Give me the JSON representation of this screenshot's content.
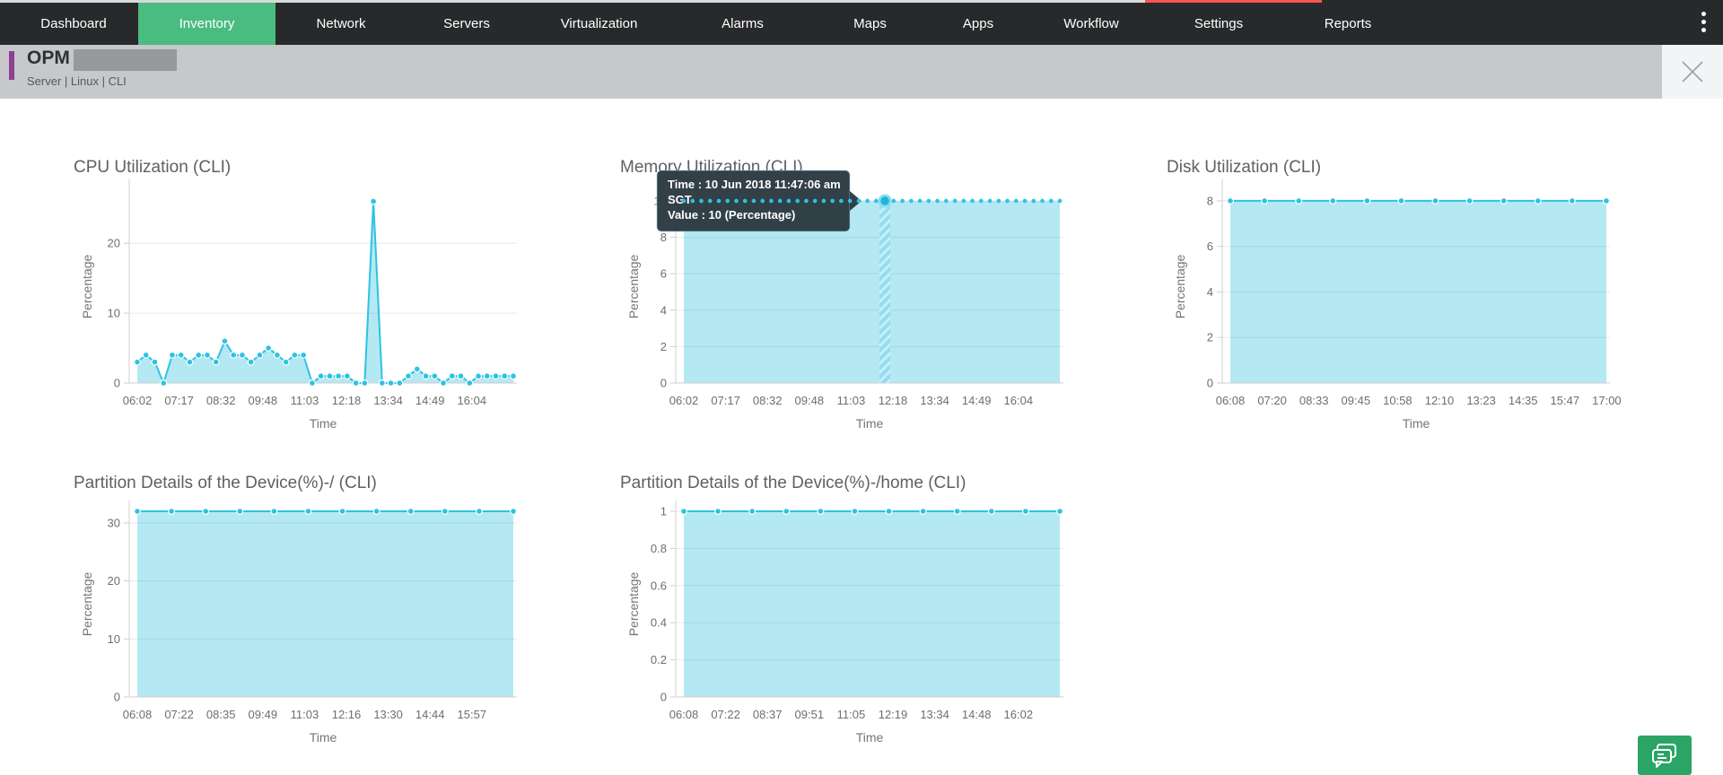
{
  "top_strip": {
    "gray": "#d8d9da",
    "red": "#f8564f",
    "dark": "#27292b"
  },
  "nav": {
    "items": [
      {
        "label": "Dashboard",
        "active": false
      },
      {
        "label": "Inventory",
        "active": true
      },
      {
        "label": "Network",
        "active": false
      },
      {
        "label": "Servers",
        "active": false
      },
      {
        "label": "Virtualization",
        "active": false
      },
      {
        "label": "Alarms",
        "active": false
      },
      {
        "label": "Maps",
        "active": false
      },
      {
        "label": "Apps",
        "active": false
      },
      {
        "label": "Workflow",
        "active": false
      },
      {
        "label": "Settings",
        "active": false
      },
      {
        "label": "Reports",
        "active": false
      }
    ],
    "active_color": "#4bbc80",
    "overflow_menu_icon": "kebab-menu-icon"
  },
  "header": {
    "title": "OPM",
    "title_redacted_suffix": true,
    "subtitle": "Server | Linux  | CLI",
    "accent_color": "#8e4192",
    "close_icon": "close-icon"
  },
  "tooltip": {
    "lines": [
      "Time : 10 Jun 2018 11:47:06 am",
      "SGT",
      "Value : 10 (Percentage)"
    ]
  },
  "colors": {
    "series_line": "#2dc3e2",
    "series_fill": "#b4e8f3",
    "hover_band": "#8edcf0",
    "tooltip_bg": "#2c3a41",
    "chat_green": "#2aa565"
  },
  "chart_data": [
    {
      "id": "cpu",
      "type": "area",
      "title": "CPU Utilization (CLI)",
      "xlabel": "Time",
      "ylabel": "Percentage",
      "x_tick_labels": [
        "06:02",
        "07:17",
        "08:32",
        "09:48",
        "11:03",
        "12:18",
        "13:34",
        "14:49",
        "16:04"
      ],
      "yticks": [
        0,
        10,
        20
      ],
      "ylim": [
        0,
        27.6
      ],
      "style": "line-dots",
      "values": [
        3,
        4,
        3,
        0,
        4,
        4,
        3,
        4,
        4,
        3,
        6,
        4,
        4,
        3,
        4,
        5,
        4,
        3,
        4,
        4,
        0,
        1,
        1,
        1,
        1,
        0,
        0,
        26,
        0,
        0,
        0,
        1,
        2,
        1,
        1,
        0,
        1,
        1,
        0,
        1,
        1,
        1,
        1,
        1
      ]
    },
    {
      "id": "memory",
      "type": "area",
      "title": "Memory Utilization (CLI)",
      "xlabel": "Time",
      "ylabel": "Percentage",
      "x_tick_labels": [
        "06:02",
        "07:17",
        "08:32",
        "09:48",
        "11:03",
        "12:18",
        "13:34",
        "14:49",
        "16:04"
      ],
      "yticks": [
        0,
        2,
        4,
        6,
        8,
        10
      ],
      "ylim": [
        0,
        10.59
      ],
      "style": "dotted",
      "values": [
        10,
        10,
        10,
        10,
        10,
        10,
        10,
        10,
        10,
        10,
        10,
        10,
        10,
        10,
        10,
        10,
        10,
        10,
        10,
        10,
        10,
        10,
        10,
        10,
        10,
        10,
        10,
        10,
        10,
        10,
        10,
        10,
        10,
        10,
        10,
        10,
        10,
        10,
        10,
        10,
        10,
        10,
        10,
        10
      ],
      "hover": {
        "point_index": 23,
        "tooltip_lines": [
          "Time : 10 Jun 2018 11:47:06 am",
          "SGT",
          "Value : 10 (Percentage)"
        ]
      }
    },
    {
      "id": "disk",
      "type": "area",
      "title": "Disk Utilization (CLI)",
      "xlabel": "Time",
      "ylabel": "Percentage",
      "x_tick_labels": [
        "06:08",
        "07:20",
        "08:33",
        "09:45",
        "10:58",
        "12:10",
        "13:23",
        "14:35",
        "15:47",
        "17:00"
      ],
      "yticks": [
        0,
        2,
        4,
        6,
        8
      ],
      "ylim": [
        0,
        8.47
      ],
      "style": "line-dots",
      "values": [
        8,
        8,
        8,
        8,
        8,
        8,
        8,
        8,
        8,
        8,
        8,
        8
      ]
    },
    {
      "id": "partition-root",
      "type": "area",
      "title": "Partition Details of the Device(%)-/ (CLI)",
      "xlabel": "Time",
      "ylabel": "Percentage",
      "x_tick_labels": [
        "06:08",
        "07:22",
        "08:35",
        "09:49",
        "11:03",
        "12:16",
        "13:30",
        "14:44",
        "15:57"
      ],
      "yticks": [
        0,
        10,
        20,
        30
      ],
      "ylim": [
        0,
        32
      ],
      "style": "line-dots",
      "values": [
        32,
        32,
        32,
        32,
        32,
        32,
        32,
        32,
        32,
        32,
        32,
        32
      ]
    },
    {
      "id": "partition-home",
      "type": "area",
      "title": "Partition Details of the Device(%)-/home (CLI)",
      "xlabel": "Time",
      "ylabel": "Percentage",
      "x_tick_labels": [
        "06:08",
        "07:22",
        "08:37",
        "09:51",
        "11:05",
        "12:19",
        "13:34",
        "14:48",
        "16:02"
      ],
      "yticks": [
        0,
        0.2,
        0.4,
        0.6,
        0.8,
        1
      ],
      "ylim": [
        0,
        1
      ],
      "style": "line-dots",
      "values": [
        1,
        1,
        1,
        1,
        1,
        1,
        1,
        1,
        1,
        1,
        1,
        1
      ]
    }
  ]
}
